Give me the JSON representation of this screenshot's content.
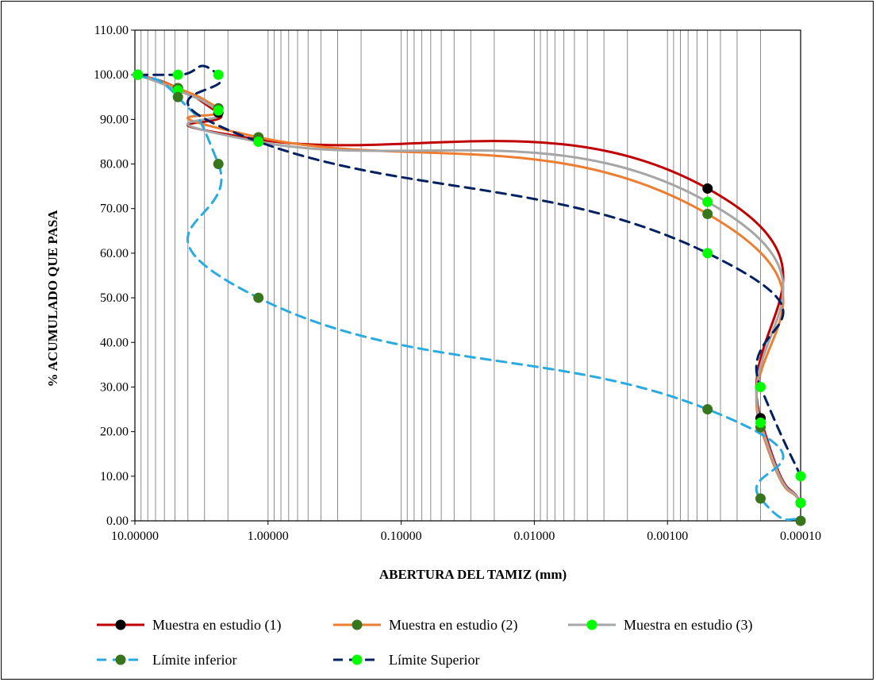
{
  "chart_data": {
    "type": "line",
    "title": "",
    "xlabel": "ABERTURA DEL TAMIZ (mm)",
    "ylabel": "% ACUMULADO QUE PASA",
    "x_scale": "log",
    "x_reversed": true,
    "xlim": [
      10.0,
      0.0001
    ],
    "ylim": [
      0,
      110
    ],
    "x_ticks": [
      10.0,
      1.0,
      0.1,
      0.01,
      0.001,
      0.0001
    ],
    "x_tick_labels": [
      "10.00000",
      "1.00000",
      "0.10000",
      "0.01000",
      "0.00100",
      "0.00010"
    ],
    "y_ticks": [
      0,
      10,
      20,
      30,
      40,
      50,
      60,
      70,
      80,
      90,
      100,
      110
    ],
    "y_tick_labels": [
      "0.00",
      "10.00",
      "20.00",
      "30.00",
      "40.00",
      "50.00",
      "60.00",
      "70.00",
      "80.00",
      "90.00",
      "100.00",
      "110.00"
    ],
    "grid": "vertical log gridlines",
    "legend_position": "bottom",
    "series": [
      {
        "name": "Muestra en estudio (1)",
        "line_color": "#C00000",
        "line_style": "solid",
        "marker_color": "#000000",
        "x": [
          9.5,
          4.75,
          2.36,
          1.18,
          0.0005,
          0.0002
        ],
        "y": [
          100,
          97,
          91.5,
          85.5,
          74.5,
          23
        ]
      },
      {
        "name": "Muestra en estudio (2)",
        "line_color": "#ED7D31",
        "line_style": "solid",
        "marker_color": "#38761D",
        "x": [
          9.5,
          4.75,
          2.36,
          1.18,
          0.0005,
          0.0002
        ],
        "y": [
          100,
          97,
          92.5,
          86,
          68.8,
          21
        ]
      },
      {
        "name": "Muestra en estudio (3)",
        "line_color": "#A6A6A6",
        "line_style": "solid",
        "marker_color": "#00FF00",
        "x": [
          9.5,
          4.75,
          2.36,
          1.18,
          0.0005,
          0.0002
        ],
        "y": [
          100,
          96.5,
          92,
          85,
          71.5,
          22
        ]
      },
      {
        "name": "Límite inferior",
        "line_color": "#29ABE2",
        "line_style": "dashed",
        "marker_color": "#38761D",
        "x": [
          9.5,
          4.75,
          2.36,
          1.18,
          0.0005,
          0.0002,
          0.0001
        ],
        "y": [
          100,
          95,
          80,
          50,
          25,
          5,
          0
        ]
      },
      {
        "name": "Límite Superior",
        "line_color": "#002060",
        "line_style": "dashed",
        "marker_color": "#00FF00",
        "x": [
          9.5,
          4.75,
          2.36,
          1.18,
          0.0005,
          0.0002,
          0.0001
        ],
        "y": [
          100,
          100,
          100,
          85,
          60,
          30,
          10
        ]
      }
    ],
    "trailing_points": {
      "x": 0.0001,
      "y": 4,
      "applies_to": [
        "Muestra en estudio (1)",
        "Muestra en estudio (2)",
        "Muestra en estudio (3)"
      ]
    }
  }
}
